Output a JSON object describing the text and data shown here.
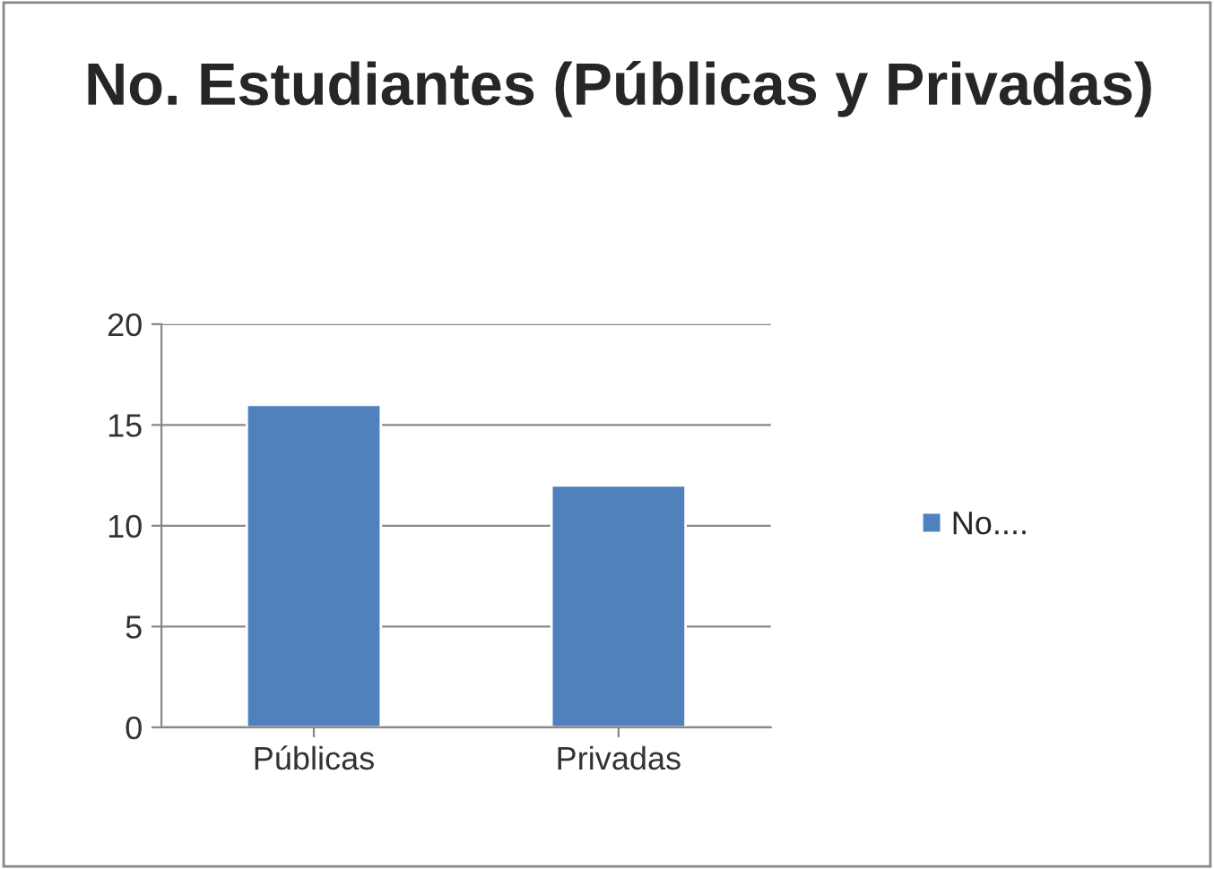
{
  "chart_data": {
    "type": "bar",
    "title": "No. Estudiantes (Públicas y Privadas)",
    "categories": [
      "Públicas",
      "Privadas"
    ],
    "series": [
      {
        "name": "No....",
        "color": "#4f81bd",
        "values": [
          16,
          12
        ]
      }
    ],
    "ylim": [
      0,
      20
    ],
    "yticks": [
      0,
      5,
      10,
      15,
      20
    ],
    "grid": "y",
    "legend": "right"
  }
}
